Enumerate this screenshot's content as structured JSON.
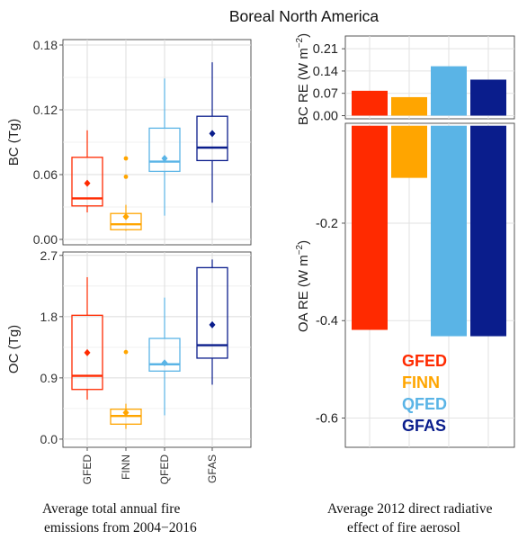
{
  "figure": {
    "title": "Boreal North America",
    "caption_left": [
      "Average total annual fire",
      "emissions from 2004−2016"
    ],
    "caption_right": [
      "Average 2012 direct radiative",
      "effect of fire aerosol"
    ]
  },
  "colors": {
    "GFED": "#ff2a00",
    "FINN": "#ffa500",
    "QFED": "#5ab4e6",
    "GFAS": "#0a1d8c"
  },
  "chart_data": [
    {
      "type": "box",
      "ylabel": "BC (Tg)",
      "ylim": [
        -0.005,
        0.185
      ],
      "yticks": [
        0.0,
        0.06,
        0.12,
        0.18
      ],
      "ytick_labels": [
        "0.00",
        "0.06",
        "0.12",
        "0.18"
      ],
      "categories": [
        "GFED",
        "FINN",
        "QFED",
        "GFAS"
      ],
      "grid": true,
      "boxes": [
        {
          "name": "GFED",
          "whisker_low": 0.025,
          "q1": 0.031,
          "median": 0.038,
          "q3": 0.076,
          "whisker_high": 0.101,
          "mean": 0.052,
          "outliers": []
        },
        {
          "name": "FINN",
          "whisker_low": 0.008,
          "q1": 0.009,
          "median": 0.014,
          "q3": 0.024,
          "whisker_high": 0.032,
          "mean": 0.021,
          "outliers": [
            0.058,
            0.075
          ]
        },
        {
          "name": "QFED",
          "whisker_low": 0.022,
          "q1": 0.063,
          "median": 0.072,
          "q3": 0.103,
          "whisker_high": 0.149,
          "mean": 0.075,
          "outliers": []
        },
        {
          "name": "GFAS",
          "whisker_low": 0.034,
          "q1": 0.073,
          "median": 0.085,
          "q3": 0.114,
          "whisker_high": 0.164,
          "mean": 0.098,
          "outliers": []
        }
      ]
    },
    {
      "type": "box",
      "ylabel": "OC (Tg)",
      "ylim": [
        -0.12,
        2.75
      ],
      "yticks": [
        0.0,
        0.9,
        1.8,
        2.7
      ],
      "ytick_labels": [
        "0.0",
        "0.9",
        "1.8",
        "2.7"
      ],
      "categories": [
        "GFED",
        "FINN",
        "QFED",
        "GFAS"
      ],
      "xtick_labels": [
        "GFED",
        "FINN",
        "QFED",
        "GFAS"
      ],
      "grid": true,
      "boxes": [
        {
          "name": "GFED",
          "whisker_low": 0.58,
          "q1": 0.73,
          "median": 0.93,
          "q3": 1.82,
          "whisker_high": 2.38,
          "mean": 1.27,
          "outliers": []
        },
        {
          "name": "FINN",
          "whisker_low": 0.15,
          "q1": 0.22,
          "median": 0.34,
          "q3": 0.44,
          "whisker_high": 0.52,
          "mean": 0.39,
          "outliers": [
            1.28
          ]
        },
        {
          "name": "QFED",
          "whisker_low": 0.35,
          "q1": 1.0,
          "median": 1.1,
          "q3": 1.48,
          "whisker_high": 2.08,
          "mean": 1.12,
          "outliers": []
        },
        {
          "name": "GFAS",
          "whisker_low": 0.8,
          "q1": 1.19,
          "median": 1.38,
          "q3": 2.52,
          "whisker_high": 2.64,
          "mean": 1.68,
          "outliers": []
        }
      ]
    },
    {
      "type": "bar",
      "ylabel_main": "BC RE (W m",
      "ylabel_sup": "−2",
      "ylabel_end": ")",
      "ylim": [
        -0.01,
        0.25
      ],
      "yticks": [
        0.0,
        0.07,
        0.14,
        0.21
      ],
      "ytick_labels": [
        "0.00",
        "0.07",
        "0.14",
        "0.21"
      ],
      "categories": [
        "GFED",
        "FINN",
        "QFED",
        "GFAS"
      ],
      "values": [
        0.078,
        0.058,
        0.155,
        0.113
      ]
    },
    {
      "type": "bar",
      "ylabel_main": "OA RE (W m",
      "ylabel_sup": "−2",
      "ylabel_end": ")",
      "ylim": [
        -0.66,
        0.005
      ],
      "yticks": [
        -0.2,
        -0.4,
        -0.6
      ],
      "ytick_labels": [
        "-0.2",
        "-0.4",
        "-0.6"
      ],
      "categories": [
        "GFED",
        "FINN",
        "QFED",
        "GFAS"
      ],
      "values": [
        -0.419,
        -0.107,
        -0.432,
        -0.432
      ],
      "legend": {
        "placement": "lower-right",
        "entries": [
          "GFED",
          "FINN",
          "QFED",
          "GFAS"
        ]
      }
    }
  ]
}
